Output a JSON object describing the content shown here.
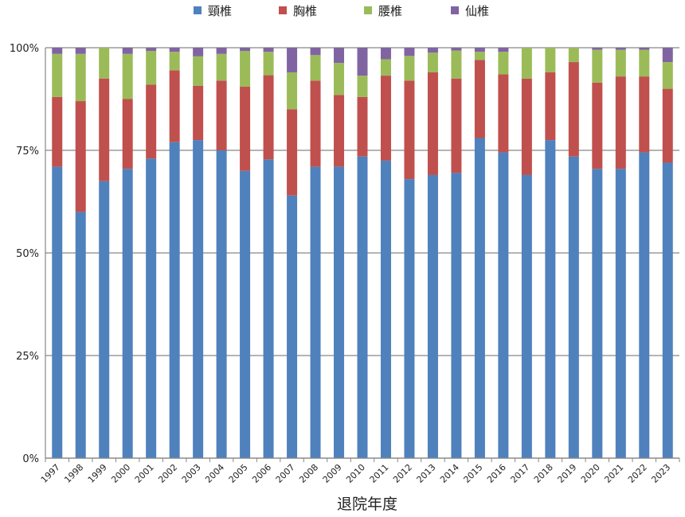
{
  "chart_data": {
    "type": "bar",
    "stacked": true,
    "percent": true,
    "xlabel": "退院年度",
    "ylabel": "",
    "ylim": [
      0,
      100
    ],
    "yticks": [
      "0%",
      "25%",
      "50%",
      "75%",
      "100%"
    ],
    "grid": "horizontal",
    "legend_position": "top",
    "categories": [
      "1997",
      "1998",
      "1999",
      "2000",
      "2001",
      "2002",
      "2003",
      "2004",
      "2005",
      "2006",
      "2007",
      "2008",
      "2009",
      "2010",
      "2011",
      "2012",
      "2013",
      "2014",
      "2015",
      "2016",
      "2017",
      "2018",
      "2019",
      "2020",
      "2021",
      "2022",
      "2023"
    ],
    "series": [
      {
        "name": "頸椎",
        "color": "#4f81bd",
        "values": [
          71.0,
          60.0,
          67.5,
          70.5,
          73.0,
          77.0,
          77.5,
          75.0,
          70.0,
          72.8,
          64.0,
          71.0,
          71.0,
          73.5,
          72.5,
          68.0,
          69.0,
          69.5,
          78.0,
          74.5,
          69.0,
          77.5,
          73.5,
          70.5,
          70.5,
          74.5,
          72.0
        ]
      },
      {
        "name": "胸椎",
        "color": "#c0504d",
        "values": [
          17.0,
          27.0,
          25.0,
          17.0,
          18.0,
          17.5,
          13.2,
          17.0,
          20.5,
          20.5,
          21.0,
          21.0,
          17.5,
          14.5,
          20.7,
          24.0,
          25.0,
          23.0,
          19.0,
          19.0,
          23.5,
          16.5,
          23.0,
          21.0,
          22.5,
          18.5,
          18.0
        ]
      },
      {
        "name": "腰椎",
        "color": "#9bbb59",
        "values": [
          10.5,
          11.5,
          7.5,
          11.0,
          8.2,
          4.5,
          7.2,
          6.5,
          8.7,
          5.7,
          9.0,
          6.2,
          7.8,
          5.2,
          4.0,
          6.0,
          4.8,
          6.8,
          2.0,
          5.5,
          7.5,
          6.0,
          3.5,
          8.0,
          6.5,
          6.5,
          6.5
        ]
      },
      {
        "name": "仙椎",
        "color": "#8064a2",
        "values": [
          1.5,
          1.5,
          0,
          1.5,
          0.8,
          1.0,
          2.1,
          1.5,
          0.8,
          1.0,
          6.0,
          1.8,
          3.7,
          6.8,
          2.8,
          2.0,
          1.2,
          0.7,
          1.0,
          1.0,
          0,
          0,
          0,
          0.5,
          0.5,
          0.5,
          3.5
        ]
      }
    ]
  }
}
